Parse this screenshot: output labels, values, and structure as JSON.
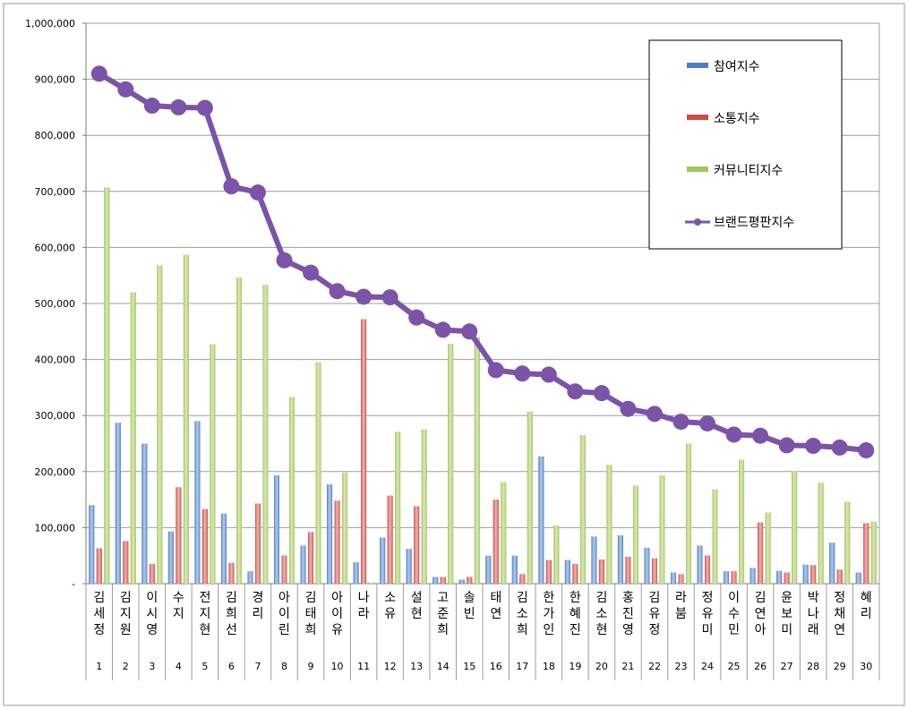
{
  "chart_data": {
    "type": "bar",
    "ylim": [
      0,
      1000000
    ],
    "yticks": [
      "-",
      "100,000",
      "200,000",
      "300,000",
      "400,000",
      "500,000",
      "600,000",
      "700,000",
      "800,000",
      "900,000",
      "1,000,000"
    ],
    "grid": true,
    "legend_position": "top-right",
    "categories": [
      "김세정",
      "김지원",
      "이시영",
      "수지",
      "전지현",
      "김희선",
      "경리",
      "아이린",
      "김태희",
      "아이유",
      "나라",
      "소유",
      "설현",
      "고준희",
      "솔빈",
      "태연",
      "김소희",
      "한가인",
      "한혜진",
      "김소현",
      "홍진영",
      "김유정",
      "라붐",
      "정유미",
      "이수민",
      "김연아",
      "윤보미",
      "박나래",
      "정채연",
      "혜리"
    ],
    "ranks": [
      "1",
      "2",
      "3",
      "4",
      "5",
      "6",
      "7",
      "8",
      "9",
      "10",
      "11",
      "12",
      "13",
      "14",
      "15",
      "16",
      "17",
      "18",
      "19",
      "20",
      "21",
      "22",
      "23",
      "24",
      "25",
      "26",
      "27",
      "28",
      "29",
      "30"
    ],
    "series": [
      {
        "name": "참여지수",
        "type": "bar",
        "color": "#4a7fc8",
        "values": [
          140000,
          287000,
          250000,
          93000,
          290000,
          125000,
          22000,
          193000,
          68000,
          177000,
          38000,
          82000,
          62000,
          12000,
          7000,
          50000,
          50000,
          227000,
          42000,
          84000,
          86000,
          64000,
          20000,
          68000,
          22000,
          28000,
          23000,
          34000,
          73000,
          20000
        ]
      },
      {
        "name": "소통지수",
        "type": "bar",
        "color": "#d04a47",
        "values": [
          63000,
          76000,
          35000,
          172000,
          133000,
          37000,
          143000,
          50000,
          92000,
          148000,
          472000,
          157000,
          138000,
          12000,
          12000,
          150000,
          17000,
          42000,
          35000,
          43000,
          48000,
          45000,
          17000,
          50000,
          22000,
          109000,
          20000,
          33000,
          25000,
          108000
        ]
      },
      {
        "name": "커뮤니티지수",
        "type": "bar",
        "color": "#a2c657",
        "values": [
          707000,
          520000,
          568000,
          587000,
          427000,
          546000,
          533000,
          333000,
          395000,
          198000,
          2000,
          271000,
          275000,
          428000,
          440000,
          181000,
          307000,
          104000,
          265000,
          212000,
          175000,
          193000,
          250000,
          168000,
          221000,
          127000,
          201000,
          180000,
          146000,
          111000
        ]
      },
      {
        "name": "브랜드평판지수",
        "type": "line",
        "color": "#7b53a8",
        "values": [
          910000,
          882000,
          853000,
          850000,
          849000,
          709000,
          698000,
          577000,
          555000,
          522000,
          512000,
          511000,
          475000,
          453000,
          450000,
          381000,
          375000,
          373000,
          343000,
          340000,
          312000,
          303000,
          289000,
          286000,
          266000,
          264000,
          247000,
          246000,
          243000,
          238000
        ]
      }
    ]
  }
}
